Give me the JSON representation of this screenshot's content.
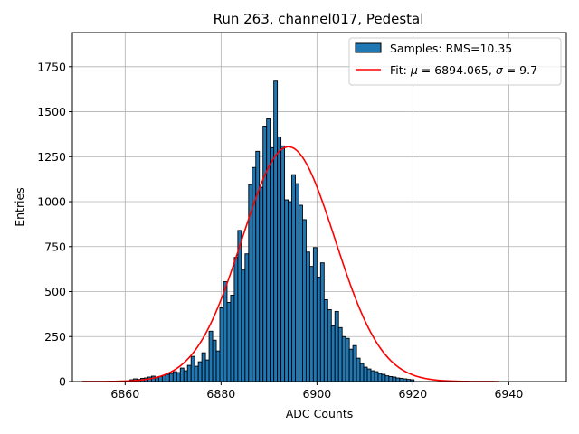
{
  "chart_data": {
    "type": "bar",
    "title": "Run 263, channel017, Pedestal",
    "xlabel": "ADC Counts",
    "ylabel": "Entries",
    "xlim": [
      6849,
      6952
    ],
    "ylim": [
      0,
      1940
    ],
    "xticks": [
      6860,
      6880,
      6900,
      6920,
      6940
    ],
    "yticks": [
      0,
      250,
      500,
      750,
      1000,
      1250,
      1500,
      1750
    ],
    "grid": true,
    "legend_position": "top-right",
    "histogram": {
      "name": "Samples: RMS=10.35",
      "color": "#1f77b4",
      "edge_color": "#000000",
      "bin_start": 6861.0,
      "bin_width": 0.75,
      "counts": [
        10,
        15,
        12,
        18,
        20,
        25,
        30,
        22,
        28,
        35,
        40,
        45,
        55,
        50,
        75,
        60,
        90,
        140,
        85,
        110,
        160,
        120,
        280,
        230,
        170,
        410,
        555,
        440,
        480,
        690,
        840,
        620,
        710,
        1095,
        1190,
        1280,
        1080,
        1420,
        1460,
        1300,
        1670,
        1360,
        1310,
        1010,
        1000,
        1150,
        1100,
        980,
        900,
        720,
        640,
        745,
        580,
        660,
        455,
        400,
        310,
        390,
        300,
        250,
        240,
        180,
        200,
        130,
        100,
        80,
        70,
        60,
        55,
        45,
        40,
        32,
        28,
        25,
        20,
        18,
        15,
        12,
        10
      ]
    },
    "fit": {
      "name": "Fit: μ = 6894.065, σ = 9.7",
      "label_prefix": "Fit: ",
      "label_mu": "μ",
      "label_mu_value": " = 6894.065, ",
      "label_sigma": "σ",
      "label_sigma_value": " = 9.7",
      "color": "#ff0000",
      "mu": 6894.065,
      "sigma": 9.7,
      "amplitude": 1305,
      "x_range": [
        6851,
        6938
      ]
    }
  }
}
